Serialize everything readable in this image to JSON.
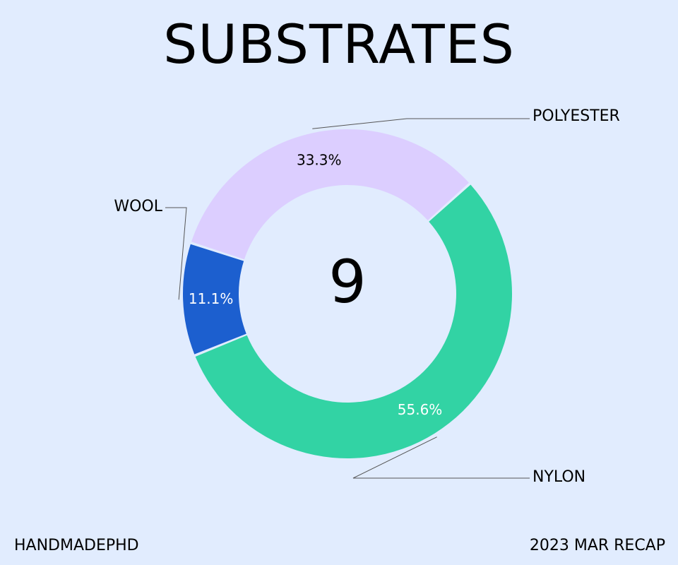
{
  "title": "SUBSTRATES",
  "footer": {
    "left": "HANDMADEPHD",
    "right": "2023 MAR RECAP"
  },
  "chart_data": {
    "type": "pie",
    "variant": "donut",
    "title": "SUBSTRATES",
    "center_label": "9",
    "legend": "none",
    "slices": [
      {
        "label": "POLYESTER",
        "value": 3,
        "percent_label": "33.3%",
        "color": "#dcceff",
        "text_color": "#000000"
      },
      {
        "label": "NYLON",
        "value": 5,
        "percent_label": "55.6%",
        "color": "#32d3a4",
        "text_color": "#ffffff"
      },
      {
        "label": "WOOL",
        "value": 1,
        "percent_label": "11.1%",
        "color": "#1c5fcf",
        "text_color": "#ffffff"
      }
    ]
  },
  "colors": {
    "background": "#e1ecfe",
    "leader_line": "#555555"
  }
}
